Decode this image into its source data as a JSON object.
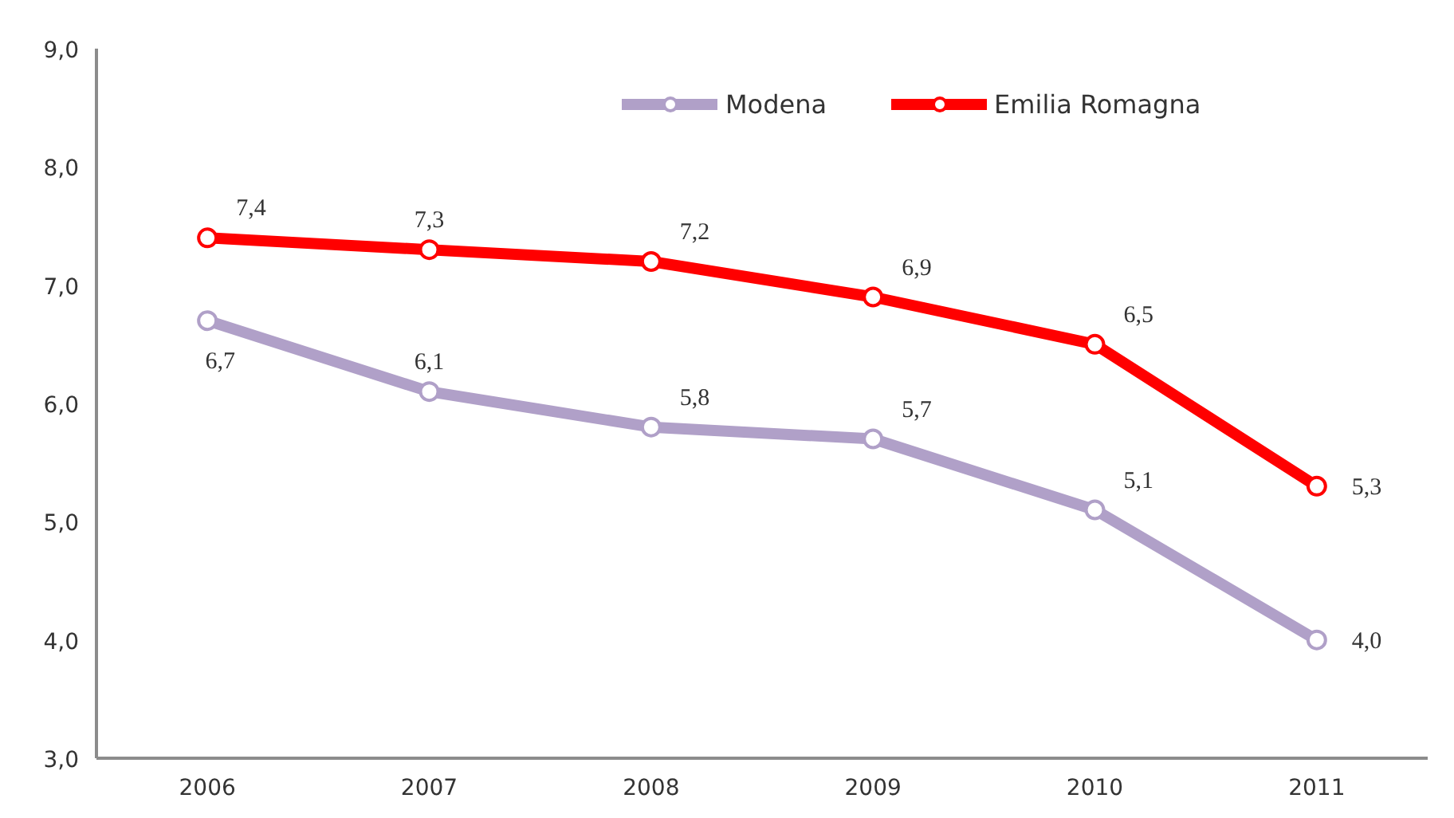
{
  "chart_data": {
    "type": "line",
    "categories": [
      "2006",
      "2007",
      "2008",
      "2009",
      "2010",
      "2011"
    ],
    "series": [
      {
        "name": "Modena",
        "color": "#b0a0c8",
        "values": [
          6.7,
          6.1,
          5.8,
          5.7,
          5.1,
          4.0
        ],
        "value_labels": [
          "6,7",
          "6,1",
          "5,8",
          "5,7",
          "5,1",
          "4,0"
        ]
      },
      {
        "name": "Emilia Romagna",
        "color": "#ff0000",
        "values": [
          7.4,
          7.3,
          7.2,
          6.9,
          6.5,
          5.3
        ],
        "value_labels": [
          "7,4",
          "7,3",
          "7,2",
          "6,9",
          "6,5",
          "5,3"
        ]
      }
    ],
    "ylim": [
      3,
      9
    ],
    "yticks": [
      {
        "value": 3,
        "label": "3,0"
      },
      {
        "value": 4,
        "label": "4,0"
      },
      {
        "value": 5,
        "label": "5,0"
      },
      {
        "value": 6,
        "label": "6,0"
      },
      {
        "value": 7,
        "label": "7,0"
      },
      {
        "value": 8,
        "label": "8,0"
      },
      {
        "value": 9,
        "label": "9,0"
      }
    ],
    "grid": false,
    "legend": "top",
    "marker": "circle",
    "line_style": "solid"
  }
}
